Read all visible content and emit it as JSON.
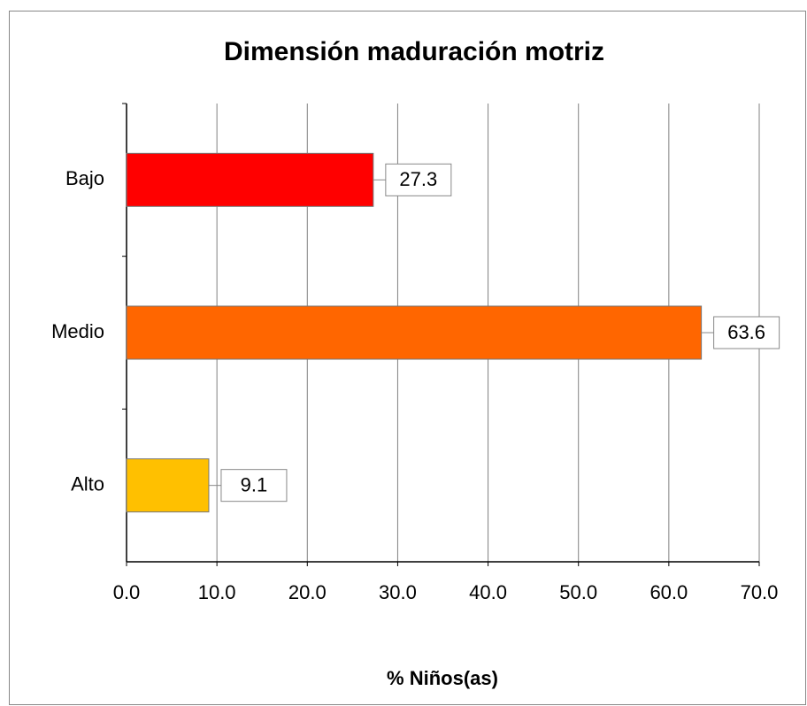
{
  "chart_data": {
    "type": "hbar",
    "title": "Dimensión maduración motriz",
    "x_label": "% Niños(as)",
    "categories": [
      "Bajo",
      "Medio",
      "Alto"
    ],
    "values": [
      27.3,
      63.6,
      9.1
    ],
    "colors": [
      "#ff0000",
      "#ff6600",
      "#ffc000"
    ],
    "xlim": [
      0,
      70
    ],
    "xticks": [
      {
        "value": 0,
        "label": "0.0"
      },
      {
        "value": 10,
        "label": "10.0"
      },
      {
        "value": 20,
        "label": "20.0"
      },
      {
        "value": 30,
        "label": "30.0"
      },
      {
        "value": 40,
        "label": "40.0"
      },
      {
        "value": 50,
        "label": "50.0"
      },
      {
        "value": 60,
        "label": "60.0"
      },
      {
        "value": 70,
        "label": "70.0"
      }
    ],
    "grid": true
  }
}
